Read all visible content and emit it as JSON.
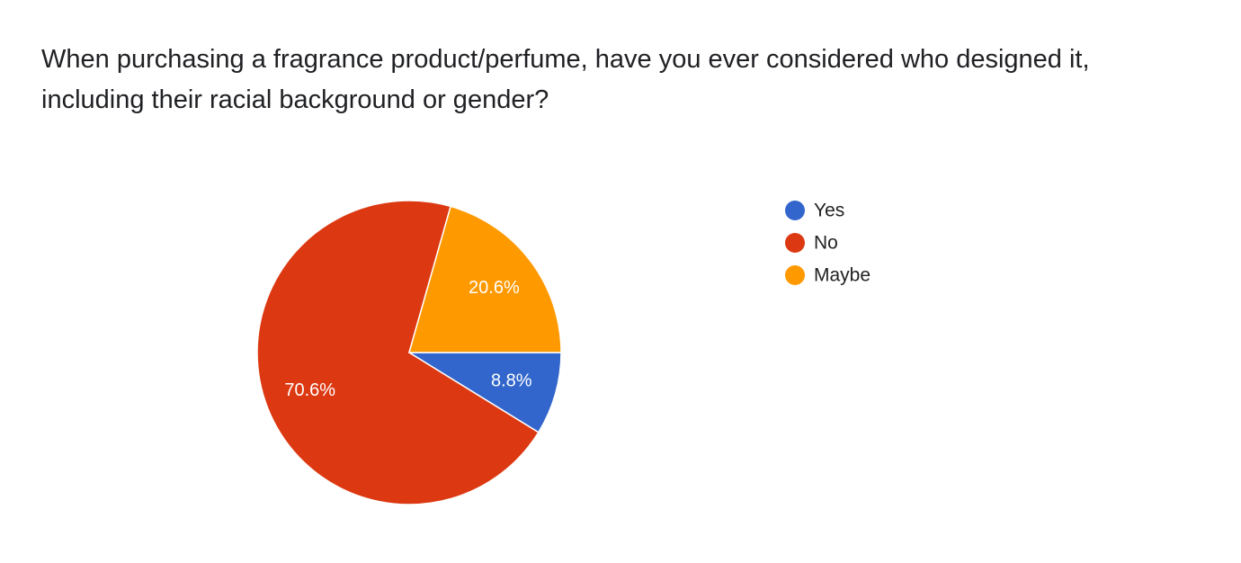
{
  "chart_data": {
    "type": "pie",
    "title": "When purchasing a fragrance product/perfume, have you ever considered who designed it, including their racial background or gender?",
    "categories": [
      "Yes",
      "No",
      "Maybe"
    ],
    "values": [
      8.8,
      70.6,
      20.6
    ],
    "value_labels": [
      "8.8%",
      "70.6%",
      "20.6%"
    ],
    "colors": [
      "#3366cc",
      "#dc3912",
      "#ff9900"
    ],
    "legend": "right"
  }
}
